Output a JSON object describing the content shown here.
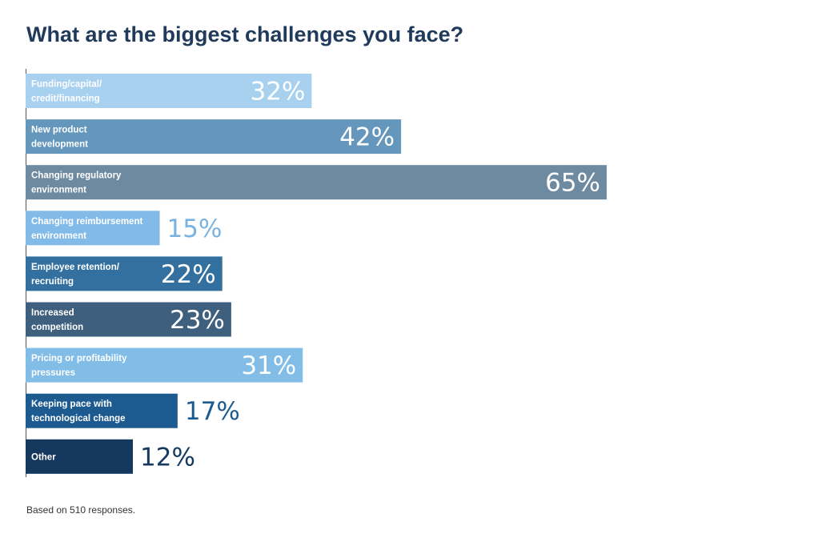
{
  "title": "What are the biggest challenges you face?",
  "footnote": "Based on 510 responses.",
  "chart_data": {
    "type": "bar",
    "orientation": "horizontal",
    "title": "What are the biggest challenges you face?",
    "xlabel": "",
    "ylabel": "",
    "xlim": [
      0,
      65
    ],
    "grid": false,
    "legend": "none",
    "categories": [
      [
        "Funding/capital/",
        "credit/financing"
      ],
      [
        "New product",
        "development"
      ],
      [
        "Changing regulatory",
        "environment"
      ],
      [
        "Changing reimbursement",
        "environment"
      ],
      [
        "Employee retention/",
        "recruiting"
      ],
      [
        "Increased",
        "competition"
      ],
      [
        "Pricing or profitability",
        "pressures"
      ],
      [
        "Keeping pace with",
        "technological change"
      ],
      [
        "Other"
      ]
    ],
    "values": [
      32,
      42,
      65,
      15,
      22,
      23,
      31,
      17,
      12
    ],
    "value_labels": [
      "32%",
      "42%",
      "65%",
      "15%",
      "22%",
      "23%",
      "31%",
      "17%",
      "12%"
    ],
    "colors": [
      "#a8d1f0",
      "#6597bd",
      "#6e8aa1",
      "#83bbe8",
      "#34709f",
      "#3f5f7f",
      "#82bde8",
      "#1c5a90",
      "#14385e"
    ],
    "value_positions": [
      "inside",
      "inside",
      "inside",
      "outside",
      "inside",
      "inside",
      "inside",
      "outside",
      "outside"
    ],
    "outside_value_colors": [
      "#7ab3e0",
      "#7ab3e0",
      "#7ab3e0",
      "#7ab3e0",
      "#7ab3e0",
      "#7ab3e0",
      "#7ab3e0",
      "#1c5a90",
      "#14385e"
    ]
  }
}
